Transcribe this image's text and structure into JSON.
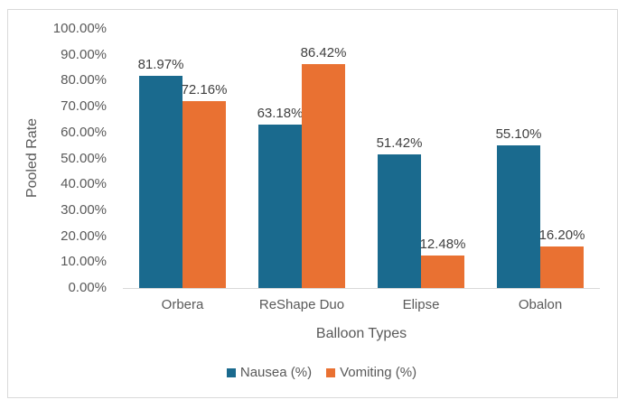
{
  "chart_data": {
    "type": "bar",
    "title": "",
    "xlabel": "Balloon Types",
    "ylabel": "Pooled Rate",
    "categories": [
      "Orbera",
      "ReShape Duo",
      "Elipse",
      "Obalon"
    ],
    "series": [
      {
        "name": "Nausea (%)",
        "color": "#1A6A8E",
        "values": [
          81.97,
          63.18,
          51.42,
          55.1
        ],
        "labels": [
          "81.97%",
          "63.18%",
          "51.42%",
          "55.10%"
        ]
      },
      {
        "name": "Vomiting (%)",
        "color": "#E97132",
        "values": [
          72.16,
          86.42,
          12.48,
          16.2
        ],
        "labels": [
          "72.16%",
          "86.42%",
          "12.48%",
          "16.20%"
        ]
      }
    ],
    "ylim": [
      0,
      100
    ],
    "ytick_labels": [
      "0.00%",
      "10.00%",
      "20.00%",
      "30.00%",
      "40.00%",
      "50.00%",
      "60.00%",
      "70.00%",
      "80.00%",
      "90.00%",
      "100.00%"
    ],
    "grid": false,
    "legend_position": "bottom"
  },
  "colors": {
    "frame_border": "#D9D9D9",
    "axis_line": "#D9D9D9",
    "axis_text": "#595959",
    "data_label_text": "#404040",
    "background": "#FFFFFF"
  }
}
